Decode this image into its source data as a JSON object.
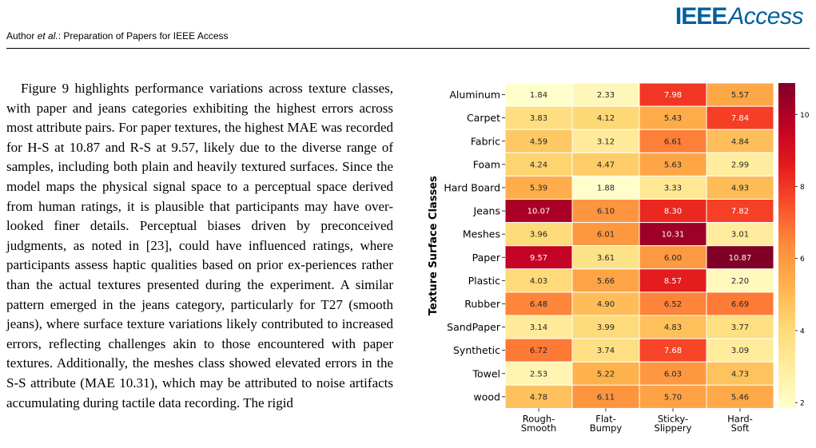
{
  "header": {
    "logo_ieee": "IEEE",
    "logo_access": "Access",
    "running_head_prefix": "Author ",
    "running_head_etal": "et al.",
    "running_head_suffix": ": Preparation of Papers for IEEE Access"
  },
  "body": {
    "paragraph": "Figure 9 highlights performance variations across texture classes, with paper and jeans categories exhibiting the highest errors across most attribute pairs. For paper textures, the highest MAE was recorded for H-S at 10.87 and R-S at 9.57, likely due to the diverse range of samples, including both plain and heavily textured surfaces. Since the model maps the physical signal space to a perceptual space derived from human ratings, it is plausible that participants may have over-looked finer details. Perceptual biases driven by preconceived judgments, as noted in [23], could have influenced ratings, where participants assess haptic qualities based on prior ex-periences rather than the actual textures presented during the experiment. A similar pattern emerged in the jeans category, particularly for T27 (smooth jeans), where surface texture variations likely contributed to increased errors, reflecting challenges akin to those encountered with paper textures. Additionally, the meshes class showed elevated errors in the S-S attribute (MAE 10.31), which may be attributed to noise artifacts accumulating during tactile data recording. The rigid"
  },
  "chart_data": {
    "type": "heatmap",
    "ylabel": "Texture Surface Classes",
    "xlabel": "",
    "rows": [
      "Aluminum",
      "Carpet",
      "Fabric",
      "Foam",
      "Hard Board",
      "Jeans",
      "Meshes",
      "Paper",
      "Plastic",
      "Rubber",
      "SandPaper",
      "Synthetic",
      "Towel",
      "wood"
    ],
    "columns": [
      [
        "Rough-",
        "Smooth"
      ],
      [
        "Flat-",
        "Bumpy"
      ],
      [
        "Sticky-",
        "Slippery"
      ],
      [
        "Hard-",
        "Soft"
      ]
    ],
    "values": [
      [
        1.84,
        2.33,
        7.98,
        5.57
      ],
      [
        3.83,
        4.12,
        5.43,
        7.84
      ],
      [
        4.59,
        3.12,
        6.61,
        4.84
      ],
      [
        4.24,
        4.47,
        5.63,
        2.99
      ],
      [
        5.39,
        1.88,
        3.33,
        4.93
      ],
      [
        10.07,
        6.1,
        8.3,
        7.82
      ],
      [
        3.96,
        6.01,
        10.31,
        3.01
      ],
      [
        9.57,
        3.61,
        6.0,
        10.87
      ],
      [
        4.03,
        5.66,
        8.57,
        2.2
      ],
      [
        6.48,
        4.9,
        6.52,
        6.69
      ],
      [
        3.14,
        3.99,
        4.83,
        3.77
      ],
      [
        6.72,
        3.74,
        7.68,
        3.09
      ],
      [
        2.53,
        5.22,
        6.03,
        4.73
      ],
      [
        4.78,
        6.11,
        5.7,
        5.46
      ]
    ],
    "colormap": "YlOrRd",
    "color_range": [
      1.84,
      10.87
    ],
    "colorbar_ticks": [
      2,
      4,
      6,
      8,
      10
    ],
    "colorbar_position": "right"
  }
}
